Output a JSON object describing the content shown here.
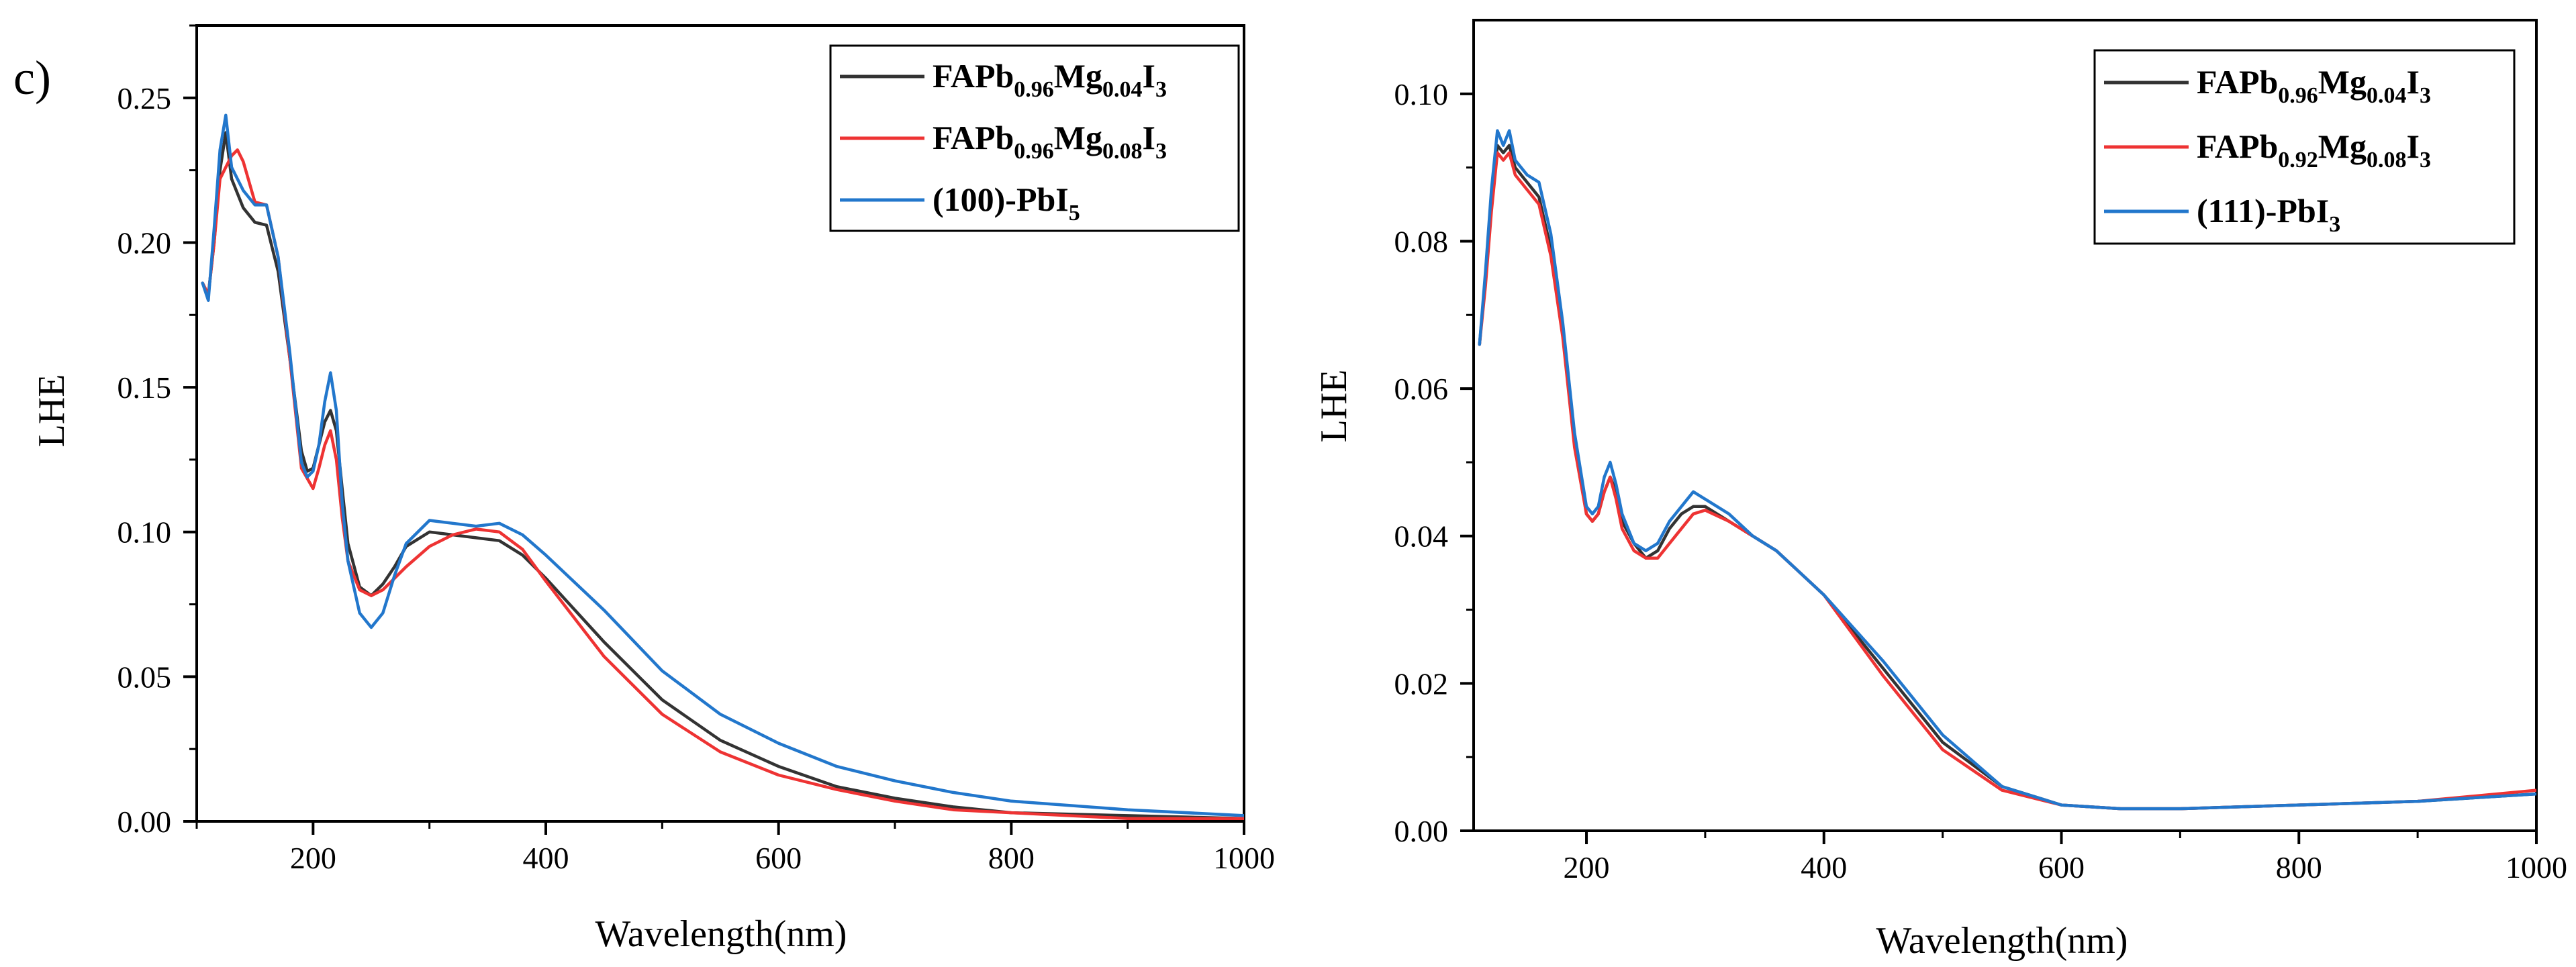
{
  "chart_data": [
    {
      "type": "line",
      "panel_label": "c)",
      "xlabel": "Wavelength(nm)",
      "ylabel": "LHE",
      "xlim": [
        100,
        1000
      ],
      "ylim": [
        0,
        0.275
      ],
      "x_ticks": [
        200,
        400,
        600,
        800,
        1000
      ],
      "x_tick_labels": [
        "200",
        "400",
        "600",
        "800",
        "1000"
      ],
      "y_ticks": [
        0,
        0.05,
        0.1,
        0.15,
        0.2,
        0.25
      ],
      "y_tick_labels": [
        "0.00",
        "0.05",
        "0.10",
        "0.15",
        "0.20",
        "0.25"
      ],
      "legend_position": "top-right",
      "series": [
        {
          "name": "FAPb0.96Mg0.04I3",
          "legend_parts": [
            [
              "FAPb",
              ""
            ],
            [
              "0.96",
              "sub"
            ],
            [
              "Mg",
              ""
            ],
            [
              "0.04",
              "sub"
            ],
            [
              "I",
              ""
            ],
            [
              "3",
              "sub"
            ]
          ],
          "color": "#333333",
          "x": [
            105,
            110,
            115,
            120,
            125,
            130,
            140,
            150,
            160,
            170,
            180,
            190,
            195,
            200,
            205,
            210,
            215,
            220,
            225,
            230,
            240,
            250,
            260,
            270,
            280,
            300,
            320,
            340,
            360,
            380,
            400,
            450,
            500,
            550,
            600,
            650,
            700,
            750,
            800,
            900,
            1000
          ],
          "y": [
            0.186,
            0.182,
            0.2,
            0.225,
            0.238,
            0.222,
            0.212,
            0.207,
            0.206,
            0.19,
            0.16,
            0.128,
            0.121,
            0.122,
            0.13,
            0.138,
            0.142,
            0.135,
            0.115,
            0.096,
            0.081,
            0.078,
            0.082,
            0.088,
            0.095,
            0.1,
            0.099,
            0.098,
            0.097,
            0.092,
            0.084,
            0.062,
            0.042,
            0.028,
            0.019,
            0.012,
            0.008,
            0.005,
            0.003,
            0.002,
            0.001
          ]
        },
        {
          "name": "FAPb0.96Mg0.08I3",
          "legend_parts": [
            [
              "FAPb",
              ""
            ],
            [
              "0.96",
              "sub"
            ],
            [
              "Mg",
              ""
            ],
            [
              "0.08",
              "sub"
            ],
            [
              "I",
              ""
            ],
            [
              "3",
              "sub"
            ]
          ],
          "color": "#ee3333",
          "x": [
            105,
            110,
            115,
            120,
            125,
            130,
            135,
            140,
            150,
            160,
            170,
            180,
            190,
            200,
            205,
            210,
            215,
            220,
            225,
            230,
            240,
            250,
            260,
            280,
            300,
            320,
            340,
            360,
            380,
            400,
            450,
            500,
            550,
            600,
            650,
            700,
            750,
            800,
            900,
            1000
          ],
          "y": [
            0.186,
            0.182,
            0.2,
            0.222,
            0.226,
            0.23,
            0.232,
            0.228,
            0.214,
            0.213,
            0.195,
            0.16,
            0.122,
            0.115,
            0.122,
            0.13,
            0.135,
            0.125,
            0.105,
            0.09,
            0.08,
            0.078,
            0.08,
            0.088,
            0.095,
            0.099,
            0.101,
            0.1,
            0.094,
            0.083,
            0.057,
            0.037,
            0.024,
            0.016,
            0.011,
            0.007,
            0.004,
            0.003,
            0.001,
            0.001
          ]
        },
        {
          "name": "(100)-PbI5",
          "legend_parts": [
            [
              "(100)-PbI",
              ""
            ],
            [
              "5",
              "sub"
            ]
          ],
          "color": "#2277cc",
          "x": [
            105,
            110,
            115,
            120,
            125,
            130,
            140,
            150,
            160,
            170,
            180,
            190,
            195,
            200,
            205,
            210,
            215,
            220,
            225,
            230,
            240,
            250,
            260,
            270,
            280,
            300,
            320,
            340,
            360,
            380,
            400,
            450,
            500,
            550,
            600,
            650,
            700,
            750,
            800,
            900,
            1000
          ],
          "y": [
            0.186,
            0.18,
            0.205,
            0.232,
            0.244,
            0.226,
            0.218,
            0.213,
            0.213,
            0.195,
            0.162,
            0.124,
            0.119,
            0.121,
            0.13,
            0.145,
            0.155,
            0.142,
            0.11,
            0.09,
            0.072,
            0.067,
            0.072,
            0.085,
            0.096,
            0.104,
            0.103,
            0.102,
            0.103,
            0.099,
            0.092,
            0.073,
            0.052,
            0.037,
            0.027,
            0.019,
            0.014,
            0.01,
            0.007,
            0.004,
            0.002
          ]
        }
      ]
    },
    {
      "type": "line",
      "xlabel": "Wavelength(nm)",
      "ylabel": "LHE",
      "xlim": [
        105,
        1000
      ],
      "ylim": [
        0,
        0.11
      ],
      "x_ticks": [
        200,
        400,
        600,
        800,
        1000
      ],
      "x_tick_labels": [
        "200",
        "400",
        "600",
        "800",
        "1000"
      ],
      "y_ticks": [
        0,
        0.02,
        0.04,
        0.06,
        0.08,
        0.1
      ],
      "y_tick_labels": [
        "0.00",
        "0.02",
        "0.04",
        "0.06",
        "0.08",
        "0.10"
      ],
      "legend_position": "top-right",
      "series": [
        {
          "name": "FAPb0.96Mg0.04I3",
          "legend_parts": [
            [
              "FAPb",
              ""
            ],
            [
              "0.96",
              "sub"
            ],
            [
              "Mg",
              ""
            ],
            [
              "0.04",
              "sub"
            ],
            [
              "I",
              ""
            ],
            [
              "3",
              "sub"
            ]
          ],
          "color": "#333333",
          "x": [
            110,
            115,
            120,
            125,
            130,
            135,
            140,
            150,
            160,
            170,
            180,
            190,
            200,
            205,
            210,
            215,
            220,
            225,
            230,
            240,
            250,
            260,
            270,
            280,
            290,
            300,
            320,
            340,
            360,
            380,
            400,
            450,
            500,
            550,
            600,
            650,
            700,
            800,
            900,
            1000
          ],
          "y": [
            0.066,
            0.075,
            0.085,
            0.093,
            0.092,
            0.093,
            0.09,
            0.088,
            0.086,
            0.079,
            0.068,
            0.053,
            0.043,
            0.042,
            0.043,
            0.046,
            0.048,
            0.046,
            0.042,
            0.039,
            0.037,
            0.038,
            0.041,
            0.043,
            0.044,
            0.044,
            0.042,
            0.04,
            0.038,
            0.035,
            0.032,
            0.022,
            0.012,
            0.006,
            0.0035,
            0.003,
            0.003,
            0.0035,
            0.004,
            0.005
          ]
        },
        {
          "name": "FAPb0.92Mg0.08I3",
          "legend_parts": [
            [
              "FAPb",
              ""
            ],
            [
              "0.92",
              "sub"
            ],
            [
              "Mg",
              ""
            ],
            [
              "0.08",
              "sub"
            ],
            [
              "I",
              ""
            ],
            [
              "3",
              "sub"
            ]
          ],
          "color": "#ee3333",
          "x": [
            110,
            115,
            120,
            125,
            130,
            135,
            140,
            150,
            160,
            170,
            180,
            190,
            200,
            205,
            210,
            215,
            220,
            225,
            230,
            240,
            250,
            260,
            270,
            280,
            290,
            300,
            320,
            340,
            360,
            380,
            400,
            450,
            500,
            550,
            600,
            650,
            700,
            800,
            900,
            1000
          ],
          "y": [
            0.066,
            0.074,
            0.084,
            0.092,
            0.091,
            0.092,
            0.089,
            0.087,
            0.085,
            0.078,
            0.067,
            0.052,
            0.043,
            0.042,
            0.043,
            0.046,
            0.048,
            0.045,
            0.041,
            0.038,
            0.037,
            0.037,
            0.039,
            0.041,
            0.043,
            0.0435,
            0.042,
            0.04,
            0.038,
            0.035,
            0.032,
            0.021,
            0.011,
            0.0055,
            0.0035,
            0.003,
            0.003,
            0.0035,
            0.004,
            0.0055
          ]
        },
        {
          "name": "(111)-PbI3",
          "legend_parts": [
            [
              "(111)-PbI",
              ""
            ],
            [
              "3",
              "sub"
            ]
          ],
          "color": "#2277cc",
          "x": [
            110,
            115,
            120,
            125,
            130,
            135,
            140,
            150,
            160,
            170,
            180,
            190,
            200,
            205,
            210,
            215,
            220,
            225,
            230,
            240,
            250,
            260,
            270,
            280,
            290,
            300,
            320,
            340,
            360,
            380,
            400,
            450,
            500,
            550,
            600,
            650,
            700,
            800,
            900,
            1000
          ],
          "y": [
            0.066,
            0.076,
            0.087,
            0.095,
            0.093,
            0.095,
            0.091,
            0.089,
            0.088,
            0.081,
            0.069,
            0.054,
            0.044,
            0.043,
            0.044,
            0.048,
            0.05,
            0.047,
            0.043,
            0.039,
            0.038,
            0.039,
            0.042,
            0.044,
            0.046,
            0.045,
            0.043,
            0.04,
            0.038,
            0.035,
            0.032,
            0.023,
            0.013,
            0.006,
            0.0035,
            0.003,
            0.003,
            0.0035,
            0.004,
            0.005
          ]
        }
      ]
    }
  ]
}
